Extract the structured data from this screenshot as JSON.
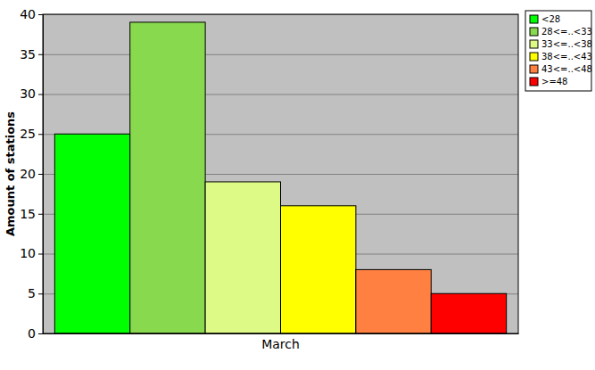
{
  "chart_data": {
    "type": "bar",
    "ylabel": "Amount of stations",
    "categories": [
      "March"
    ],
    "series": [
      {
        "name": "<28",
        "color": "#00ff00",
        "values": [
          25
        ]
      },
      {
        "name": "28<=..<33",
        "color": "#88d94e",
        "values": [
          39
        ]
      },
      {
        "name": "33<=..<38",
        "color": "#ddf986",
        "values": [
          19
        ]
      },
      {
        "name": "38<=..<43",
        "color": "#ffff00",
        "values": [
          16
        ]
      },
      {
        "name": "43<=..<48",
        "color": "#ff8040",
        "values": [
          8
        ]
      },
      {
        "name": ">=48",
        "color": "#ff0000",
        "values": [
          5
        ]
      }
    ],
    "ylim": [
      0,
      40
    ],
    "yticks": [
      0,
      5,
      10,
      15,
      20,
      25,
      30,
      35,
      40
    ],
    "grid": true,
    "legend": "top-right"
  }
}
